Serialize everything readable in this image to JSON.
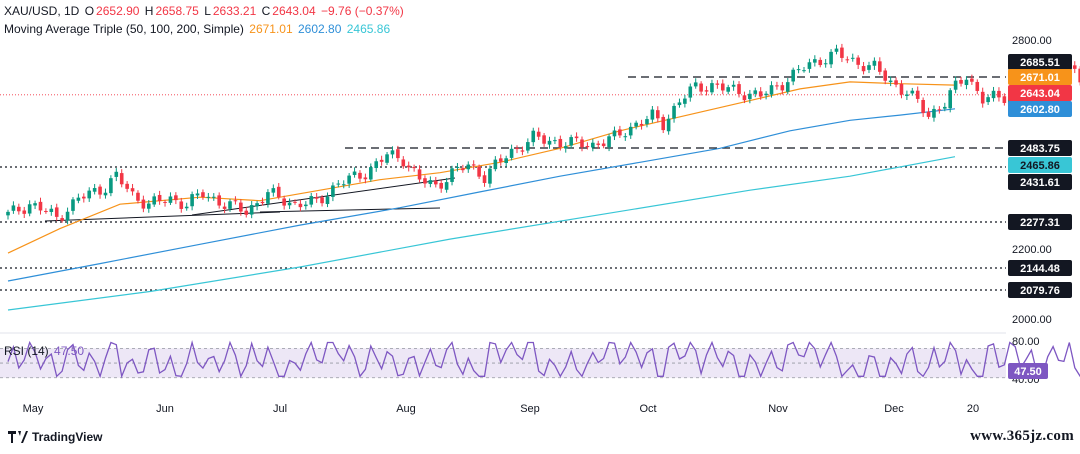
{
  "header": {
    "symbol": "XAU/USD, 1D",
    "o_label": "O",
    "o": "2652.90",
    "h_label": "H",
    "h": "2658.75",
    "l_label": "L",
    "l": "2633.21",
    "c_label": "C",
    "c": "2643.04",
    "change": "−9.76 (−0.37%)",
    "ma_title": "Moving Average Triple (50, 100, 200, Simple)",
    "ma50": "2671.01",
    "ma100": "2602.80",
    "ma200": "2465.86"
  },
  "rsi_header": {
    "title": "RSI (14)",
    "value": "47.50"
  },
  "colors": {
    "up": "#089981",
    "down": "#f23645",
    "ma50": "#f7931a",
    "ma100": "#2f8fd8",
    "ma200": "#38c6d6",
    "rsi": "#7e57c2",
    "band": "#ede7f6"
  },
  "chart_data": [
    {
      "type": "line",
      "subtype": "candlestick",
      "title": "XAU/USD, 1D",
      "x_ticks": [
        "May",
        "Jun",
        "Jul",
        "Aug",
        "Sep",
        "Oct",
        "Nov",
        "Dec",
        "20"
      ],
      "y_ticks": [
        "2800.00",
        "2600.00",
        "2400.00",
        "2200.00",
        "2000.00"
      ],
      "ylim": [
        1950,
        2840
      ],
      "horizontal_levels": [
        "2685.51",
        "2483.75",
        "2431.61",
        "2277.31",
        "2144.48",
        "2079.76"
      ],
      "series": [
        {
          "name": "SMA 50",
          "last": 2671.01
        },
        {
          "name": "SMA 100",
          "last": 2602.8
        },
        {
          "name": "SMA 200",
          "last": 2465.86
        }
      ],
      "price_tags": [
        "2685.51",
        "2671.01",
        "2643.04",
        "2602.80",
        "2483.75",
        "2465.86",
        "2431.61",
        "2277.31",
        "2144.48",
        "2079.76"
      ],
      "last_close": 2643.04
    },
    {
      "type": "line",
      "title": "RSI (14)",
      "y_ticks": [
        "80.00",
        "40.00"
      ],
      "ylim": [
        30,
        82
      ],
      "last": 47.5
    }
  ],
  "footer": {
    "brand": "TradingView",
    "watermark": "www.365jz.com"
  }
}
